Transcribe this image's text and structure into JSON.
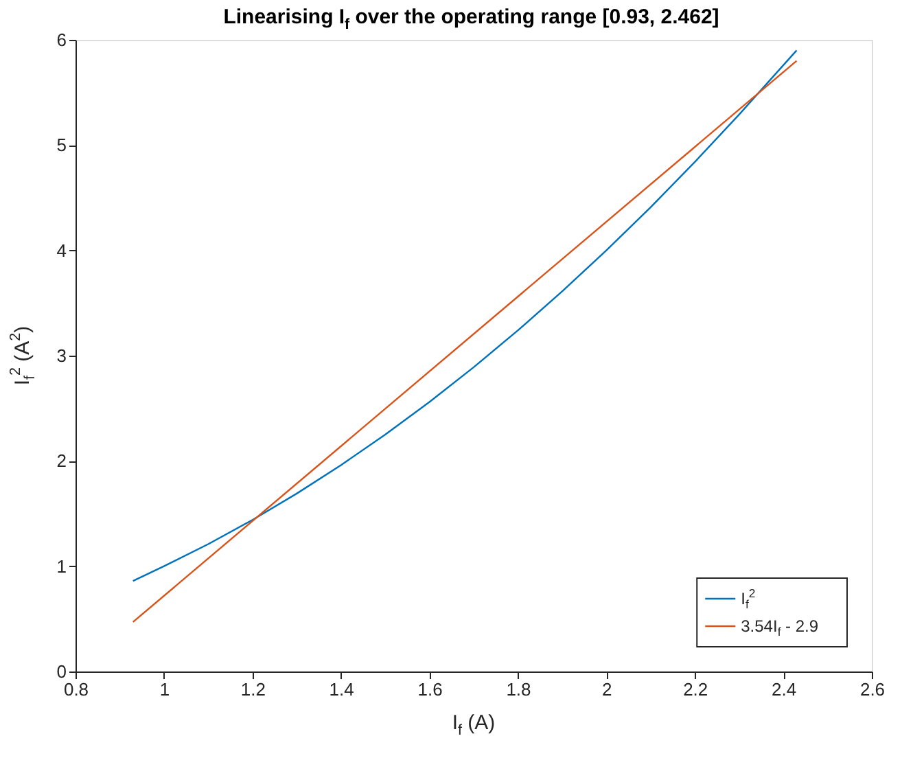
{
  "chart_data": {
    "type": "line",
    "title": "Linearising I$_{f}$ over the operating range [0.93, 2.462]",
    "xlabel": "I$_{f}$ (A)",
    "ylabel": "I$_{f}$$^{2}$ (A$^{2}$)",
    "xlim": [
      0.8,
      2.6
    ],
    "xticks": [
      0.8,
      1,
      1.2,
      1.4,
      1.6,
      1.8,
      2,
      2.2,
      2.4,
      2.6
    ],
    "ylim": [
      0,
      6
    ],
    "yticks": [
      0,
      1,
      2,
      3,
      4,
      5,
      6
    ],
    "grid": false,
    "legend": "bottom right",
    "marker": "none",
    "line_style": "solid",
    "series": [
      {
        "name": "I$_{f}$$^{2}$",
        "color": "#0072bd",
        "x": [
          0.93,
          1.0,
          1.1,
          1.2,
          1.3,
          1.4,
          1.5,
          1.6,
          1.7,
          1.8,
          1.9,
          2.0,
          2.1,
          2.2,
          2.3,
          2.43
        ],
        "values": [
          0.86,
          1.0,
          1.21,
          1.44,
          1.69,
          1.96,
          2.25,
          2.56,
          2.89,
          3.24,
          3.61,
          4.0,
          4.41,
          4.84,
          5.29,
          5.9
        ]
      },
      {
        "name": "3.54I$_{f}$ - 2.9",
        "color": "#d95319",
        "x": [
          0.93,
          2.43
        ],
        "values": [
          0.47,
          5.8
        ]
      }
    ]
  }
}
